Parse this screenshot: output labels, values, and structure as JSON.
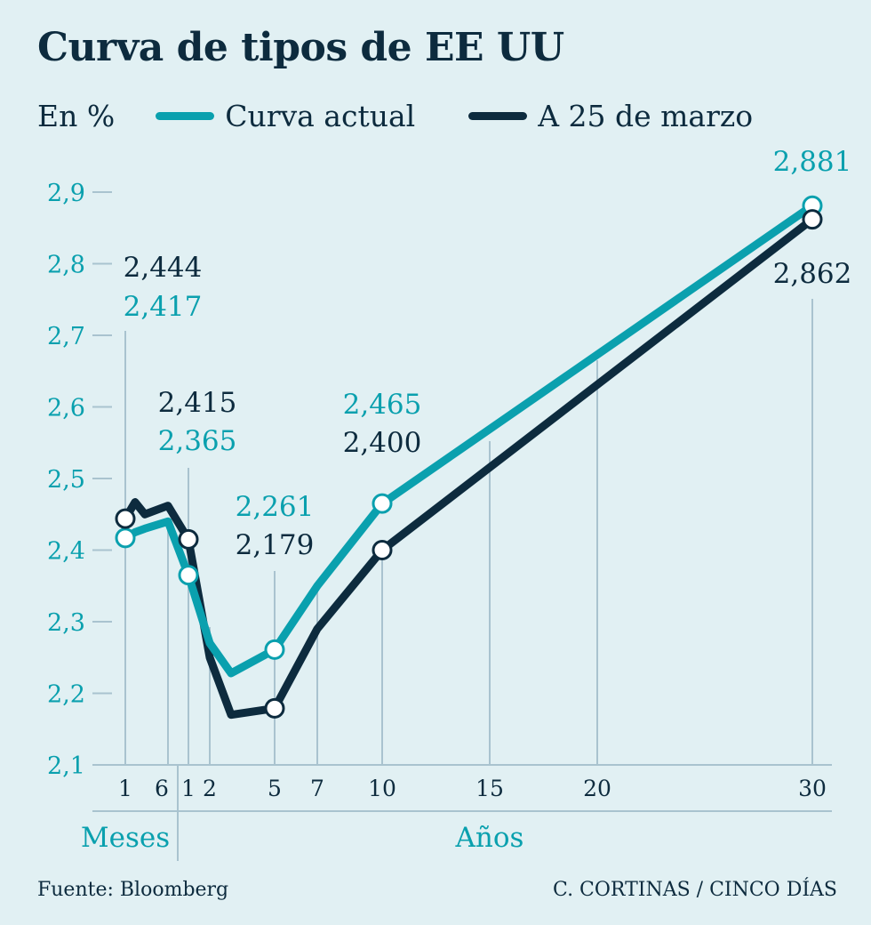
{
  "title": "Curva de tipos de EE UU",
  "legend": {
    "unit": "En %",
    "items": [
      {
        "label": "Curva actual",
        "color": "#0aa0ae"
      },
      {
        "label": "A 25 de marzo",
        "color": "#0d2b3e"
      }
    ]
  },
  "footer": {
    "source": "Fuente: Bloomberg",
    "credit": "C. CORTINAS / CINCO DÍAS"
  },
  "colors": {
    "background": "#e1f0f3",
    "accent": "#0aa0ae",
    "dark": "#0d2b3e",
    "grid": "#a9c3cf"
  },
  "chart_data": {
    "type": "line",
    "yticks": [
      "2,1",
      "2,2",
      "2,3",
      "2,4",
      "2,5",
      "2,6",
      "2,7",
      "2,8",
      "2,9"
    ],
    "ylim": [
      2.1,
      2.9
    ],
    "xticks": [
      "1",
      "6",
      "1",
      "2",
      "5",
      "7",
      "10",
      "15",
      "20",
      "30"
    ],
    "xgroups": [
      "Meses",
      "Años"
    ],
    "series": [
      {
        "name": "Curva actual",
        "color": "#0aa0ae",
        "points": [
          {
            "x": "1 mes",
            "y": 2.417
          },
          {
            "x": "2 meses",
            "y": 2.425
          },
          {
            "x": "3 meses",
            "y": 2.43
          },
          {
            "x": "6 meses",
            "y": 2.44
          },
          {
            "x": "1 año",
            "y": 2.365
          },
          {
            "x": "2 años",
            "y": 2.27
          },
          {
            "x": "3 años",
            "y": 2.228
          },
          {
            "x": "5 años",
            "y": 2.261
          },
          {
            "x": "7 años",
            "y": 2.35
          },
          {
            "x": "10 años",
            "y": 2.465
          },
          {
            "x": "30 años",
            "y": 2.881
          }
        ]
      },
      {
        "name": "A 25 de marzo",
        "color": "#0d2b3e",
        "points": [
          {
            "x": "1 mes",
            "y": 2.444
          },
          {
            "x": "2 meses",
            "y": 2.467
          },
          {
            "x": "3 meses",
            "y": 2.45
          },
          {
            "x": "6 meses",
            "y": 2.462
          },
          {
            "x": "1 año",
            "y": 2.415
          },
          {
            "x": "2 años",
            "y": 2.25
          },
          {
            "x": "3 años",
            "y": 2.17
          },
          {
            "x": "5 años",
            "y": 2.179
          },
          {
            "x": "7 años",
            "y": 2.29
          },
          {
            "x": "10 años",
            "y": 2.4
          },
          {
            "x": "30 años",
            "y": 2.862
          }
        ]
      }
    ],
    "annotations": [
      {
        "x": "1 mes",
        "labels": [
          {
            "text": "2,444",
            "series": "A 25 de marzo"
          },
          {
            "text": "2,417",
            "series": "Curva actual"
          }
        ]
      },
      {
        "x": "1 año",
        "labels": [
          {
            "text": "2,415",
            "series": "A 25 de marzo"
          },
          {
            "text": "2,365",
            "series": "Curva actual"
          }
        ]
      },
      {
        "x": "5 años",
        "labels": [
          {
            "text": "2,261",
            "series": "Curva actual"
          },
          {
            "text": "2,179",
            "series": "A 25 de marzo"
          }
        ]
      },
      {
        "x": "10 años",
        "labels": [
          {
            "text": "2,465",
            "series": "Curva actual"
          },
          {
            "text": "2,400",
            "series": "A 25 de marzo"
          }
        ]
      },
      {
        "x": "30 años",
        "labels": [
          {
            "text": "2,881",
            "series": "Curva actual"
          },
          {
            "text": "2,862",
            "series": "A 25 de marzo"
          }
        ]
      }
    ],
    "grid": true,
    "legend_position": "top-left"
  }
}
